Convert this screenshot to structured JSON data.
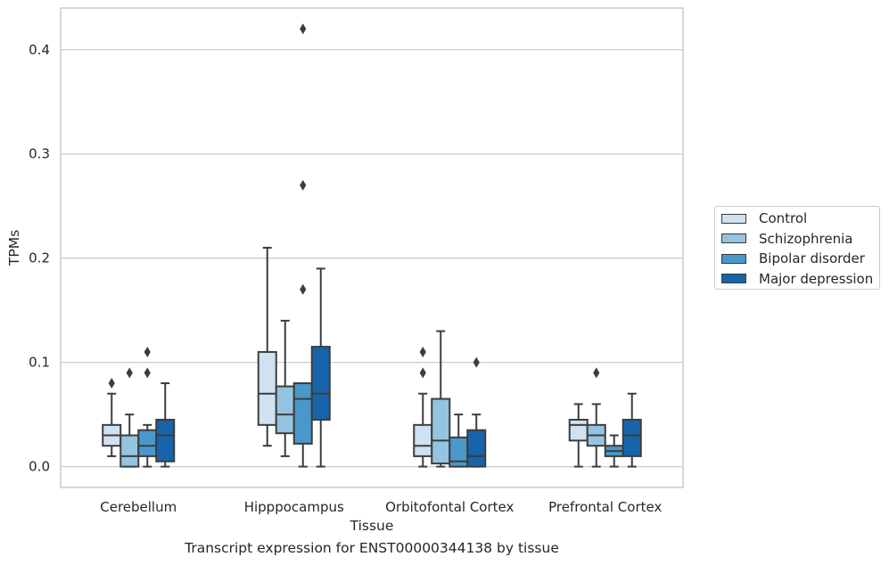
{
  "chart_data": {
    "type": "box",
    "caption": "Transcript expression for ENST00000344138 by tissue",
    "xlabel": "Tissue",
    "ylabel": "TPMs",
    "ylim": [
      -0.02,
      0.44
    ],
    "yticks": [
      "0.0",
      "0.1",
      "0.2",
      "0.3",
      "0.4"
    ],
    "grid": true,
    "legend_position": "right",
    "categories": [
      "Cerebellum",
      "Hipppocampus",
      "Orbitofontal Cortex",
      "Prefrontal Cortex"
    ],
    "series": [
      {
        "name": "Control",
        "color": "#d0e1f2",
        "boxes": [
          {
            "whislo": 0.01,
            "q1": 0.02,
            "med": 0.03,
            "q3": 0.04,
            "whishi": 0.07,
            "fliers": [
              0.08
            ]
          },
          {
            "whislo": 0.02,
            "q1": 0.04,
            "med": 0.07,
            "q3": 0.11,
            "whishi": 0.21,
            "fliers": []
          },
          {
            "whislo": 0.0,
            "q1": 0.01,
            "med": 0.02,
            "q3": 0.04,
            "whishi": 0.07,
            "fliers": [
              0.09,
              0.11
            ]
          },
          {
            "whislo": 0.0,
            "q1": 0.025,
            "med": 0.04,
            "q3": 0.045,
            "whishi": 0.06,
            "fliers": []
          }
        ]
      },
      {
        "name": "Schizophrenia",
        "color": "#94c4df",
        "boxes": [
          {
            "whislo": 0.0,
            "q1": 0.0,
            "med": 0.01,
            "q3": 0.03,
            "whishi": 0.05,
            "fliers": [
              0.09
            ]
          },
          {
            "whislo": 0.01,
            "q1": 0.032,
            "med": 0.05,
            "q3": 0.077,
            "whishi": 0.14,
            "fliers": []
          },
          {
            "whislo": 0.0,
            "q1": 0.003,
            "med": 0.025,
            "q3": 0.065,
            "whishi": 0.13,
            "fliers": []
          },
          {
            "whislo": 0.0,
            "q1": 0.02,
            "med": 0.03,
            "q3": 0.04,
            "whishi": 0.06,
            "fliers": [
              0.09
            ]
          }
        ]
      },
      {
        "name": "Bipolar disorder",
        "color": "#4a98c9",
        "boxes": [
          {
            "whislo": 0.0,
            "q1": 0.01,
            "med": 0.02,
            "q3": 0.035,
            "whishi": 0.04,
            "fliers": [
              0.09,
              0.11
            ]
          },
          {
            "whislo": 0.0,
            "q1": 0.022,
            "med": 0.065,
            "q3": 0.08,
            "whishi": 0.08,
            "fliers": [
              0.17,
              0.27,
              0.42
            ]
          },
          {
            "whislo": 0.0,
            "q1": 0.0,
            "med": 0.005,
            "q3": 0.028,
            "whishi": 0.05,
            "fliers": []
          },
          {
            "whislo": 0.0,
            "q1": 0.01,
            "med": 0.015,
            "q3": 0.02,
            "whishi": 0.03,
            "fliers": []
          }
        ]
      },
      {
        "name": "Major depression",
        "color": "#1764ab",
        "boxes": [
          {
            "whislo": 0.0,
            "q1": 0.005,
            "med": 0.03,
            "q3": 0.045,
            "whishi": 0.08,
            "fliers": []
          },
          {
            "whislo": 0.0,
            "q1": 0.045,
            "med": 0.07,
            "q3": 0.115,
            "whishi": 0.19,
            "fliers": []
          },
          {
            "whislo": 0.0,
            "q1": 0.0,
            "med": 0.01,
            "q3": 0.035,
            "whishi": 0.05,
            "fliers": [
              0.1
            ]
          },
          {
            "whislo": 0.0,
            "q1": 0.01,
            "med": 0.03,
            "q3": 0.045,
            "whishi": 0.07,
            "fliers": []
          }
        ]
      }
    ]
  }
}
